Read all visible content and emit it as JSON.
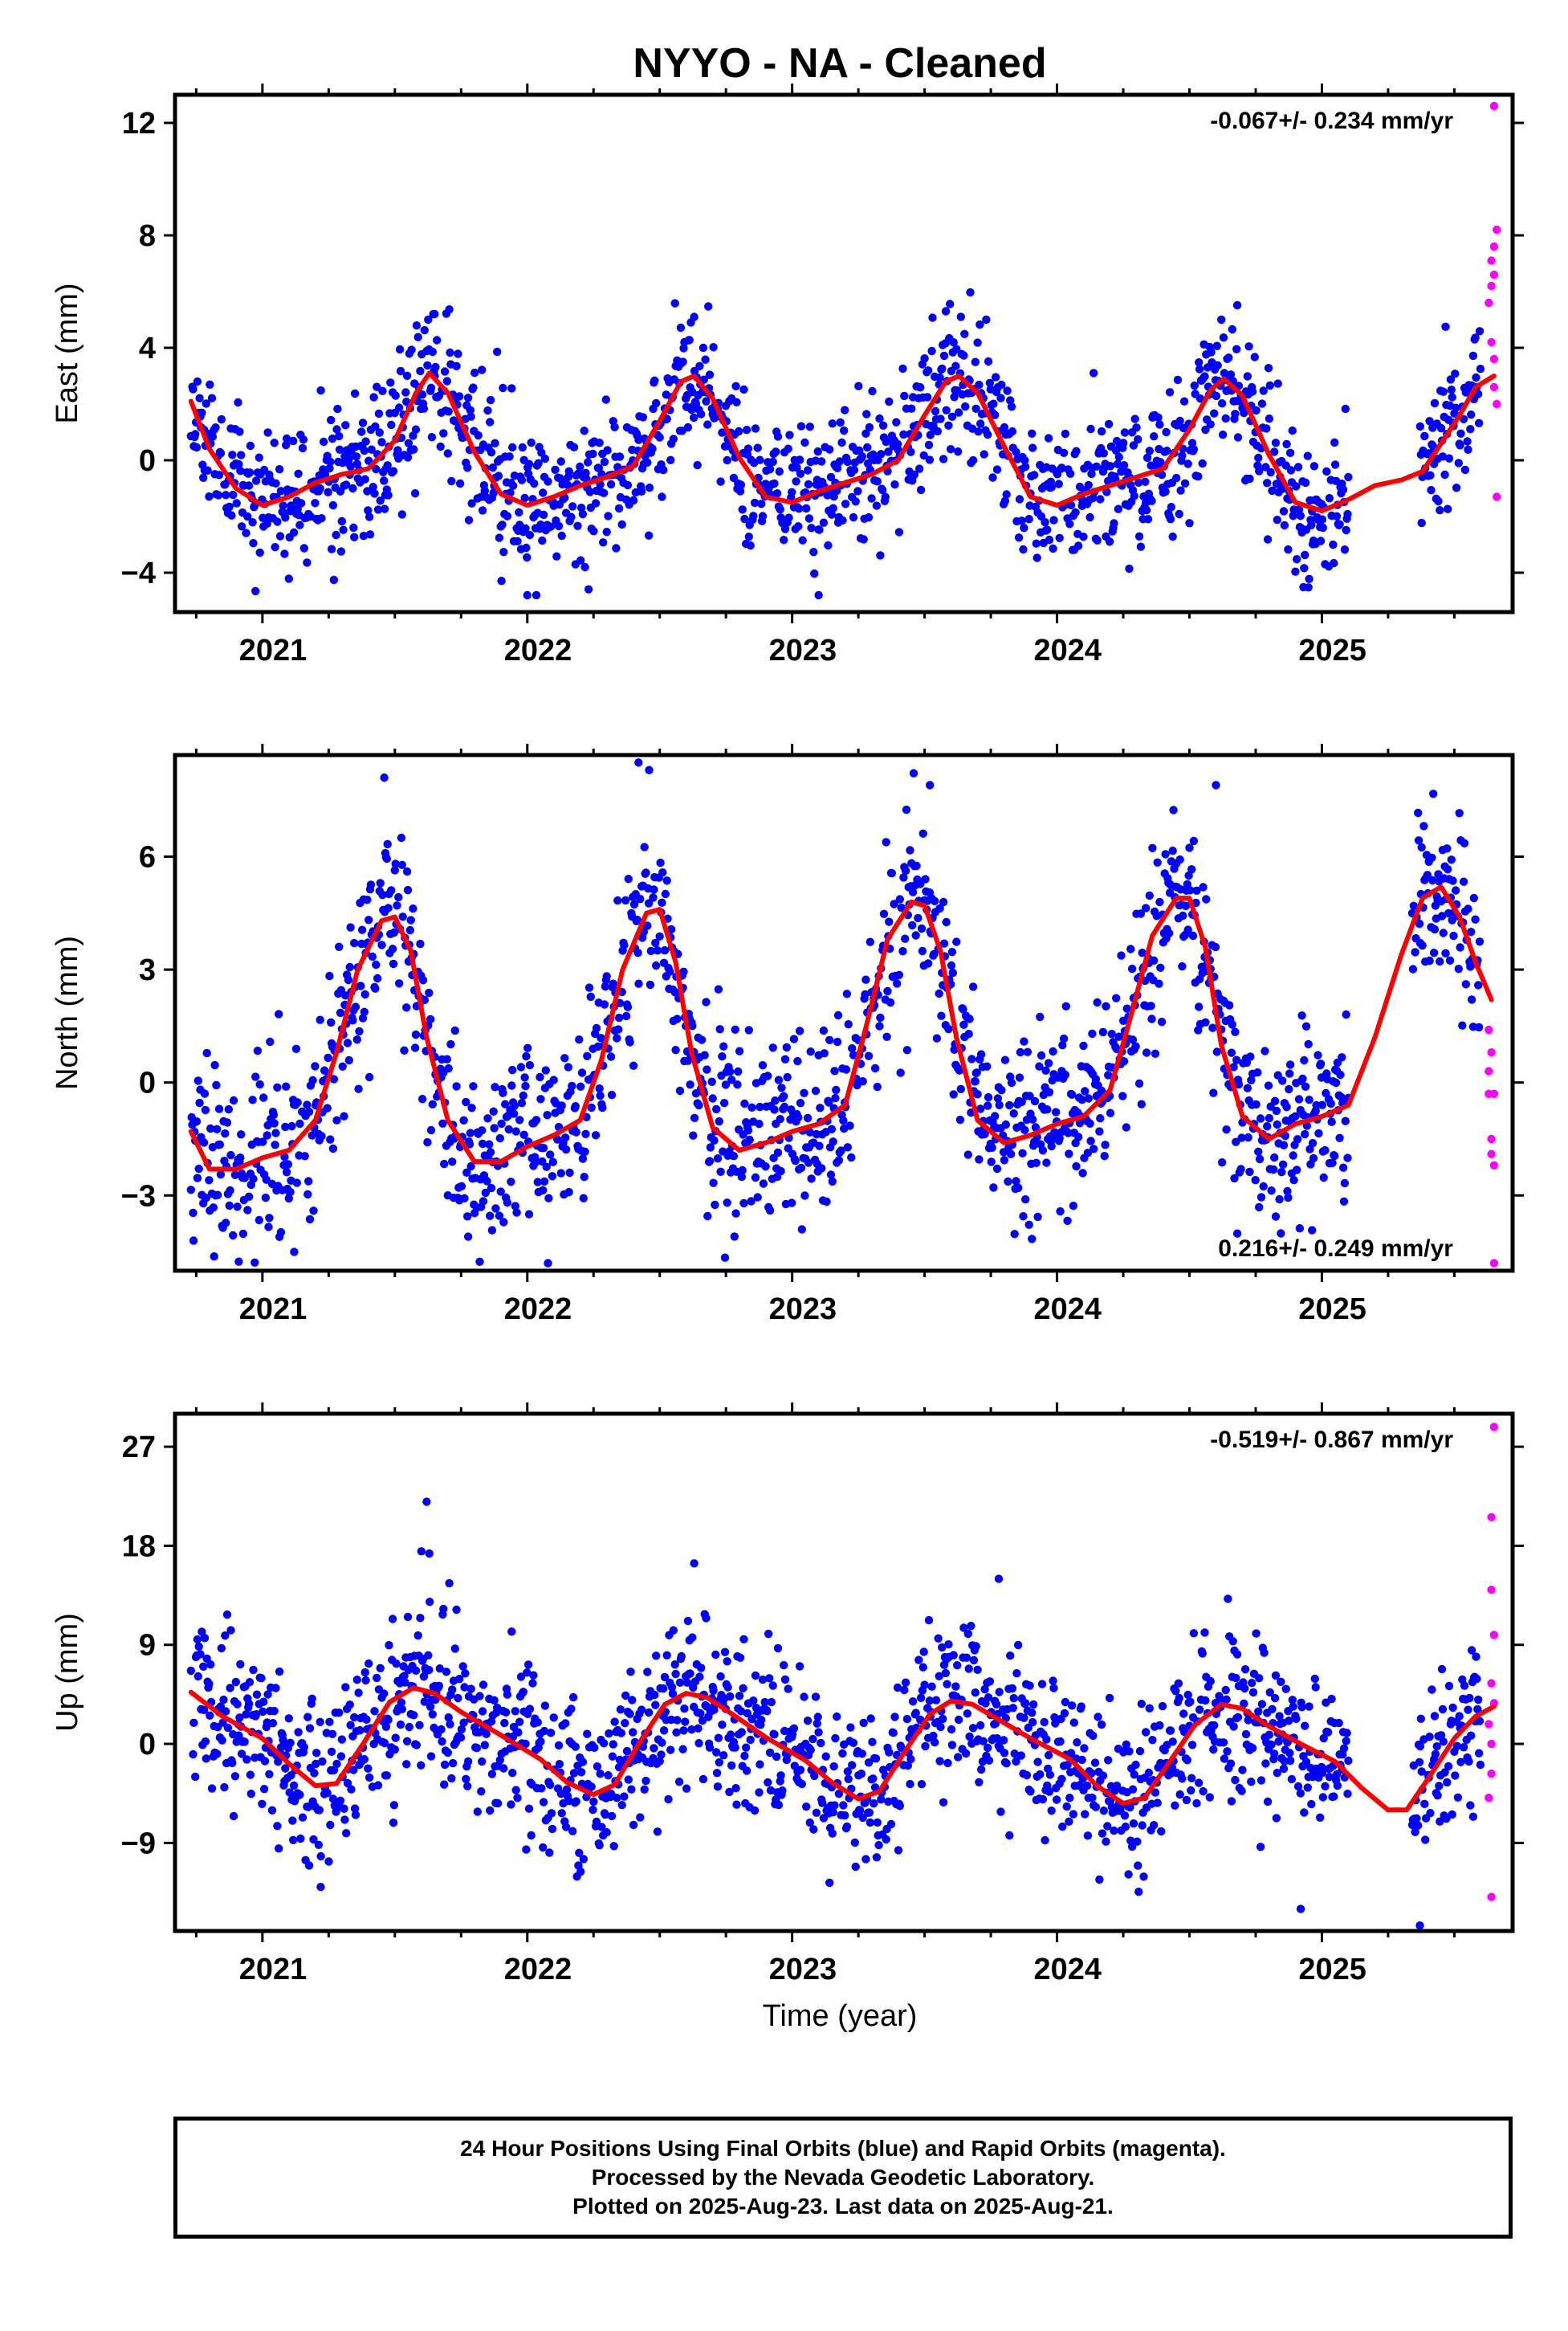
{
  "title": "NYYO  - NA - Cleaned",
  "xlabel": "Time (year)",
  "caption": [
    "24 Hour Positions Using Final Orbits (blue) and Rapid Orbits (magenta).",
    "Processed by the Nevada Geodetic Laboratory.",
    "Plotted on 2025-Aug-23. Last data on 2025-Aug-21."
  ],
  "colors": {
    "final": "#0000ff",
    "rapid": "#ff00ff",
    "fit": "#ff0000",
    "frame": "#000000"
  },
  "chart_data": [
    {
      "type": "scatter",
      "component": "east",
      "ylabel": "East (mm)",
      "rate": "-0.067+/- 0.234 mm/yr",
      "rate_position": "top-right",
      "xlim": [
        2020.67,
        2025.72
      ],
      "ylim": [
        -5.4,
        13.0
      ],
      "yticks": [
        -4,
        0,
        4,
        8,
        12
      ],
      "xticks": [
        2021,
        2022,
        2023,
        2024,
        2025
      ],
      "trend": [
        [
          2020.73,
          2.1
        ],
        [
          2020.8,
          0.4
        ],
        [
          2020.9,
          -1.0
        ],
        [
          2021.0,
          -1.6
        ],
        [
          2021.1,
          -1.3
        ],
        [
          2021.2,
          -0.8
        ],
        [
          2021.3,
          -0.5
        ],
        [
          2021.4,
          -0.3
        ],
        [
          2021.5,
          0.7
        ],
        [
          2021.58,
          2.4
        ],
        [
          2021.63,
          3.1
        ],
        [
          2021.7,
          2.4
        ],
        [
          2021.8,
          0.3
        ],
        [
          2021.9,
          -1.2
        ],
        [
          2022.0,
          -1.6
        ],
        [
          2022.1,
          -1.3
        ],
        [
          2022.2,
          -0.9
        ],
        [
          2022.3,
          -0.6
        ],
        [
          2022.4,
          -0.2
        ],
        [
          2022.5,
          1.4
        ],
        [
          2022.58,
          2.8
        ],
        [
          2022.63,
          3.0
        ],
        [
          2022.7,
          2.2
        ],
        [
          2022.8,
          0.1
        ],
        [
          2022.9,
          -1.3
        ],
        [
          2023.0,
          -1.5
        ],
        [
          2023.1,
          -1.1
        ],
        [
          2023.2,
          -0.8
        ],
        [
          2023.3,
          -0.5
        ],
        [
          2023.4,
          0.0
        ],
        [
          2023.5,
          1.6
        ],
        [
          2023.58,
          2.8
        ],
        [
          2023.63,
          3.0
        ],
        [
          2023.7,
          2.4
        ],
        [
          2023.8,
          0.5
        ],
        [
          2023.9,
          -1.3
        ],
        [
          2024.0,
          -1.6
        ],
        [
          2024.1,
          -1.2
        ],
        [
          2024.2,
          -0.9
        ],
        [
          2024.3,
          -0.6
        ],
        [
          2024.4,
          -0.3
        ],
        [
          2024.5,
          1.1
        ],
        [
          2024.58,
          2.5
        ],
        [
          2024.63,
          2.9
        ],
        [
          2024.7,
          2.3
        ],
        [
          2024.8,
          0.2
        ],
        [
          2024.9,
          -1.5
        ],
        [
          2025.0,
          -1.8
        ],
        [
          2025.1,
          -1.4
        ],
        [
          2025.2,
          -0.9
        ],
        [
          2025.3,
          -0.7
        ],
        [
          2025.38,
          -0.4
        ],
        [
          2025.45,
          0.6
        ],
        [
          2025.52,
          1.6
        ],
        [
          2025.58,
          2.6
        ],
        [
          2025.65,
          3.0
        ]
      ],
      "rapid_points": [
        [
          2025.65,
          12.6
        ],
        [
          2025.66,
          8.2
        ],
        [
          2025.65,
          7.6
        ],
        [
          2025.64,
          7.1
        ],
        [
          2025.65,
          6.6
        ],
        [
          2025.64,
          6.2
        ],
        [
          2025.63,
          5.6
        ],
        [
          2025.64,
          4.2
        ],
        [
          2025.65,
          3.6
        ],
        [
          2025.65,
          2.6
        ],
        [
          2025.66,
          2.0
        ],
        [
          2025.66,
          -1.3
        ]
      ],
      "scatter": {
        "amp": 1.3,
        "seed": 11,
        "gaps": [
          [
            2025.1,
            2025.37
          ]
        ],
        "outliers": [
          [
            2021.65,
            5.2
          ],
          [
            2022.63,
            5.1
          ],
          [
            2023.58,
            5.3
          ],
          [
            2023.1,
            -4.8
          ],
          [
            2022.0,
            -4.8
          ]
        ]
      }
    },
    {
      "type": "scatter",
      "component": "north",
      "ylabel": "North (mm)",
      "rate": "0.216+/- 0.249 mm/yr",
      "rate_position": "bottom-right",
      "xlim": [
        2020.67,
        2025.72
      ],
      "ylim": [
        -5.0,
        8.7
      ],
      "yticks": [
        -3,
        0,
        3,
        6
      ],
      "xticks": [
        2021,
        2022,
        2023,
        2024,
        2025
      ],
      "trend": [
        [
          2020.73,
          -1.3
        ],
        [
          2020.8,
          -2.3
        ],
        [
          2020.9,
          -2.3
        ],
        [
          2021.0,
          -2.0
        ],
        [
          2021.1,
          -1.8
        ],
        [
          2021.2,
          -1.0
        ],
        [
          2021.28,
          0.8
        ],
        [
          2021.36,
          3.0
        ],
        [
          2021.45,
          4.3
        ],
        [
          2021.5,
          4.4
        ],
        [
          2021.56,
          3.5
        ],
        [
          2021.62,
          1.2
        ],
        [
          2021.7,
          -1.0
        ],
        [
          2021.8,
          -2.1
        ],
        [
          2021.9,
          -2.1
        ],
        [
          2022.0,
          -1.7
        ],
        [
          2022.1,
          -1.4
        ],
        [
          2022.2,
          -1.0
        ],
        [
          2022.28,
          0.6
        ],
        [
          2022.36,
          3.0
        ],
        [
          2022.45,
          4.5
        ],
        [
          2022.5,
          4.6
        ],
        [
          2022.56,
          3.2
        ],
        [
          2022.62,
          0.8
        ],
        [
          2022.7,
          -1.2
        ],
        [
          2022.8,
          -1.8
        ],
        [
          2022.9,
          -1.6
        ],
        [
          2023.0,
          -1.3
        ],
        [
          2023.1,
          -1.1
        ],
        [
          2023.2,
          -0.6
        ],
        [
          2023.28,
          1.5
        ],
        [
          2023.36,
          3.8
        ],
        [
          2023.45,
          4.8
        ],
        [
          2023.5,
          4.7
        ],
        [
          2023.56,
          3.5
        ],
        [
          2023.62,
          1.2
        ],
        [
          2023.7,
          -1.0
        ],
        [
          2023.8,
          -1.6
        ],
        [
          2023.9,
          -1.4
        ],
        [
          2024.0,
          -1.1
        ],
        [
          2024.1,
          -0.9
        ],
        [
          2024.2,
          -0.2
        ],
        [
          2024.28,
          1.8
        ],
        [
          2024.36,
          3.9
        ],
        [
          2024.45,
          4.9
        ],
        [
          2024.5,
          4.9
        ],
        [
          2024.56,
          3.6
        ],
        [
          2024.62,
          1.0
        ],
        [
          2024.7,
          -0.9
        ],
        [
          2024.8,
          -1.5
        ],
        [
          2024.9,
          -1.1
        ],
        [
          2025.0,
          -0.9
        ],
        [
          2025.1,
          -0.6
        ],
        [
          2025.2,
          1.2
        ],
        [
          2025.3,
          3.4
        ],
        [
          2025.38,
          4.9
        ],
        [
          2025.45,
          5.2
        ],
        [
          2025.52,
          4.4
        ],
        [
          2025.58,
          3.2
        ],
        [
          2025.64,
          2.2
        ]
      ],
      "rapid_points": [
        [
          2025.63,
          1.4
        ],
        [
          2025.64,
          0.8
        ],
        [
          2025.63,
          0.3
        ],
        [
          2025.65,
          -0.3
        ],
        [
          2025.63,
          -0.3
        ],
        [
          2025.64,
          -1.5
        ],
        [
          2025.64,
          -1.9
        ],
        [
          2025.65,
          -2.2
        ],
        [
          2025.65,
          -4.8
        ]
      ],
      "scatter": {
        "amp": 1.2,
        "seed": 23,
        "gaps": [
          [
            2025.1,
            2025.34
          ]
        ],
        "outliers": [
          [
            2021.46,
            8.1
          ],
          [
            2022.42,
            8.5
          ],
          [
            2022.46,
            8.3
          ],
          [
            2023.52,
            7.9
          ],
          [
            2024.6,
            7.9
          ],
          [
            2020.74,
            -4.2
          ],
          [
            2021.12,
            -4.5
          ]
        ]
      }
    },
    {
      "type": "scatter",
      "component": "up",
      "ylabel": "Up (mm)",
      "rate": "-0.519+/- 0.867 mm/yr",
      "rate_position": "top-right",
      "xlim": [
        2020.67,
        2025.72
      ],
      "ylim": [
        -17.0,
        30.0
      ],
      "yticks": [
        -9,
        0,
        9,
        18,
        27
      ],
      "xticks": [
        2021,
        2022,
        2023,
        2024,
        2025
      ],
      "trend": [
        [
          2020.73,
          4.7
        ],
        [
          2020.85,
          2.5
        ],
        [
          2021.0,
          0.5
        ],
        [
          2021.1,
          -1.8
        ],
        [
          2021.2,
          -3.8
        ],
        [
          2021.28,
          -3.6
        ],
        [
          2021.38,
          0.0
        ],
        [
          2021.48,
          3.8
        ],
        [
          2021.57,
          5.1
        ],
        [
          2021.65,
          4.6
        ],
        [
          2021.75,
          2.9
        ],
        [
          2021.9,
          0.8
        ],
        [
          2022.05,
          -1.4
        ],
        [
          2022.15,
          -3.5
        ],
        [
          2022.25,
          -4.6
        ],
        [
          2022.33,
          -3.7
        ],
        [
          2022.42,
          0.0
        ],
        [
          2022.52,
          3.6
        ],
        [
          2022.6,
          4.6
        ],
        [
          2022.68,
          4.2
        ],
        [
          2022.78,
          2.6
        ],
        [
          2022.9,
          0.6
        ],
        [
          2023.05,
          -1.5
        ],
        [
          2023.15,
          -3.5
        ],
        [
          2023.25,
          -5.0
        ],
        [
          2023.33,
          -4.3
        ],
        [
          2023.42,
          -0.9
        ],
        [
          2023.52,
          2.7
        ],
        [
          2023.6,
          3.9
        ],
        [
          2023.68,
          3.6
        ],
        [
          2023.78,
          2.2
        ],
        [
          2023.9,
          0.5
        ],
        [
          2024.05,
          -1.4
        ],
        [
          2024.15,
          -3.8
        ],
        [
          2024.25,
          -5.4
        ],
        [
          2024.33,
          -4.9
        ],
        [
          2024.42,
          -1.8
        ],
        [
          2024.52,
          1.7
        ],
        [
          2024.62,
          3.6
        ],
        [
          2024.7,
          3.2
        ],
        [
          2024.8,
          1.6
        ],
        [
          2024.92,
          0.0
        ],
        [
          2025.05,
          -1.6
        ],
        [
          2025.15,
          -4.0
        ],
        [
          2025.25,
          -6.0
        ],
        [
          2025.32,
          -6.0
        ],
        [
          2025.4,
          -3.2
        ],
        [
          2025.5,
          0.5
        ],
        [
          2025.58,
          2.5
        ],
        [
          2025.65,
          3.4
        ]
      ],
      "rapid_points": [
        [
          2025.65,
          28.8
        ],
        [
          2025.64,
          20.6
        ],
        [
          2025.64,
          14.0
        ],
        [
          2025.65,
          9.9
        ],
        [
          2025.64,
          5.5
        ],
        [
          2025.65,
          3.7
        ],
        [
          2025.63,
          1.8
        ],
        [
          2025.64,
          0.0
        ],
        [
          2025.64,
          -2.7
        ],
        [
          2025.63,
          -4.9
        ],
        [
          2025.64,
          -13.9
        ]
      ],
      "scatter": {
        "amp": 3.6,
        "seed": 37,
        "gaps": [
          [
            2025.1,
            2025.34
          ]
        ],
        "outliers": [
          [
            2021.62,
            22.0
          ],
          [
            2021.6,
            17.5
          ],
          [
            2021.63,
            17.3
          ],
          [
            2022.63,
            16.4
          ],
          [
            2023.78,
            15.0
          ],
          [
            2024.92,
            -15.0
          ],
          [
            2021.22,
            -13.0
          ],
          [
            2025.37,
            -16.5
          ]
        ]
      }
    }
  ]
}
